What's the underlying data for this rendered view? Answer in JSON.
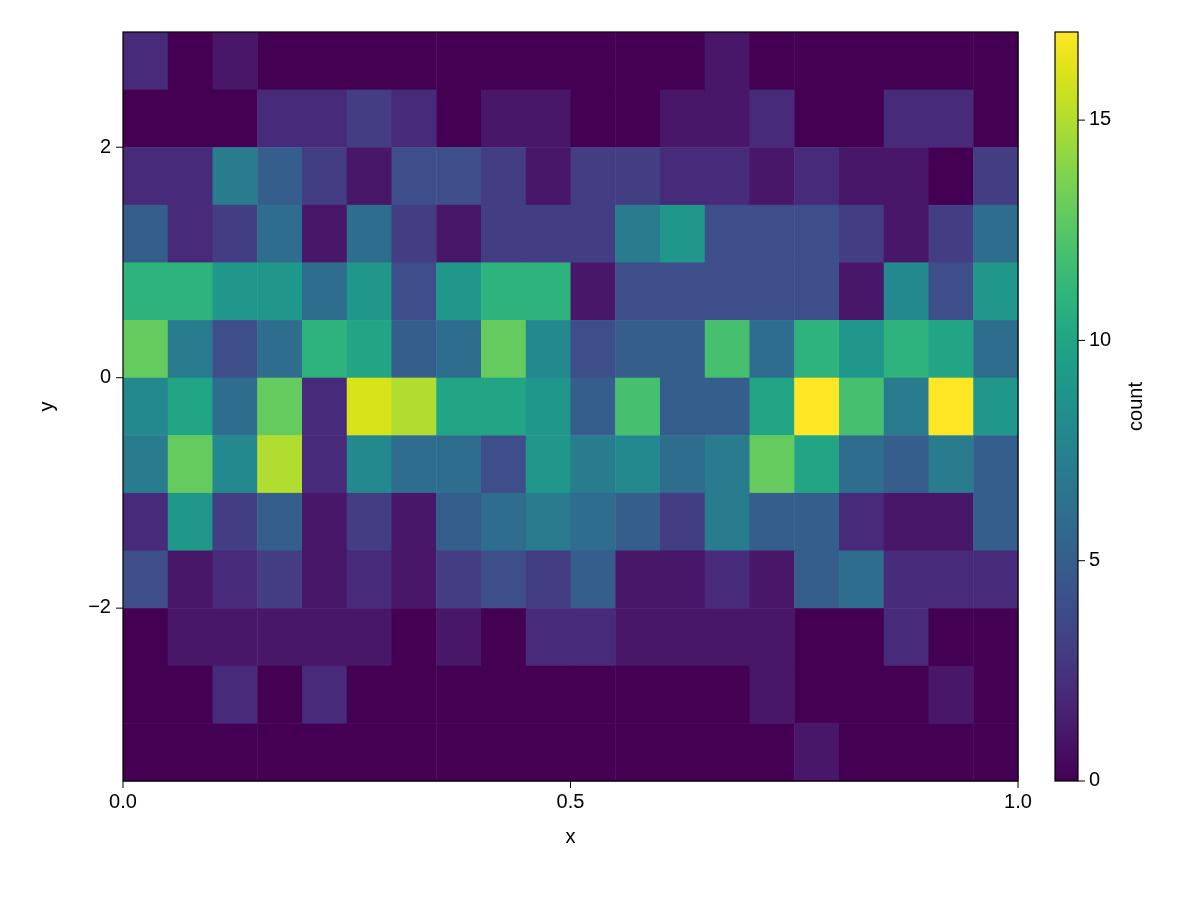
{
  "chart_data": {
    "type": "heatmap",
    "xlabel": "x",
    "ylabel": "y",
    "clabel": "count",
    "xlim": [
      0,
      1
    ],
    "xticks": [
      {
        "value": 0,
        "label": "0.0"
      },
      {
        "value": 0.5,
        "label": "0.5"
      },
      {
        "value": 1,
        "label": "1.0"
      }
    ],
    "ylim": [
      -3.5,
      3
    ],
    "yticks": [
      {
        "value": -2,
        "label": "−2"
      },
      0,
      2
    ],
    "clim": [
      0,
      17
    ],
    "cticks": [
      0,
      5,
      10,
      15
    ],
    "cells": [
      [
        2,
        0,
        1,
        0,
        0,
        0,
        0,
        0,
        0,
        0,
        0,
        0,
        0,
        1,
        0,
        0,
        0,
        0,
        0,
        0
      ],
      [
        0,
        0,
        0,
        2,
        2,
        3,
        2,
        0,
        1,
        1,
        0,
        0,
        1,
        1,
        2,
        0,
        0,
        2,
        2,
        0
      ],
      [
        2,
        2,
        7,
        5,
        3,
        1,
        4,
        4,
        3,
        1,
        3,
        3,
        2,
        2,
        1,
        2,
        1,
        1,
        0,
        3
      ],
      [
        5,
        2,
        3,
        6,
        1,
        6,
        3,
        1,
        3,
        3,
        3,
        7,
        9,
        4,
        4,
        4,
        3,
        1,
        3,
        6
      ],
      [
        11,
        11,
        9,
        9,
        6,
        9,
        4,
        9,
        11,
        11,
        1,
        4,
        4,
        4,
        4,
        4,
        1,
        8,
        4,
        9
      ],
      [
        13,
        7,
        4,
        6,
        11,
        10,
        5,
        6,
        13,
        8,
        4,
        5,
        5,
        12,
        6,
        11,
        9,
        11,
        10,
        6
      ],
      [
        8,
        10,
        6,
        13,
        2,
        16,
        15,
        10,
        10,
        9,
        5,
        12,
        5,
        5,
        10,
        17,
        12,
        7,
        17,
        9
      ],
      [
        7,
        13,
        8,
        15,
        2,
        8,
        6,
        6,
        4,
        9,
        7,
        8,
        6,
        7,
        13,
        10,
        6,
        5,
        7,
        5
      ],
      [
        2,
        9,
        3,
        5,
        1,
        3,
        1,
        5,
        6,
        7,
        6,
        5,
        3,
        7,
        5,
        5,
        2,
        1,
        1,
        5
      ],
      [
        4,
        1,
        2,
        3,
        1,
        2,
        1,
        3,
        4,
        3,
        5,
        1,
        1,
        2,
        1,
        5,
        6,
        2,
        2,
        2
      ],
      [
        0,
        1,
        1,
        1,
        1,
        1,
        0,
        1,
        0,
        2,
        2,
        1,
        1,
        1,
        1,
        0,
        0,
        2,
        0,
        0
      ],
      [
        0,
        0,
        2,
        0,
        2,
        0,
        0,
        0,
        0,
        0,
        0,
        0,
        0,
        0,
        1,
        0,
        0,
        0,
        1,
        0
      ],
      [
        0,
        0,
        0,
        0,
        0,
        0,
        0,
        0,
        0,
        0,
        0,
        0,
        0,
        0,
        0,
        1,
        0,
        0,
        0,
        0
      ]
    ]
  }
}
